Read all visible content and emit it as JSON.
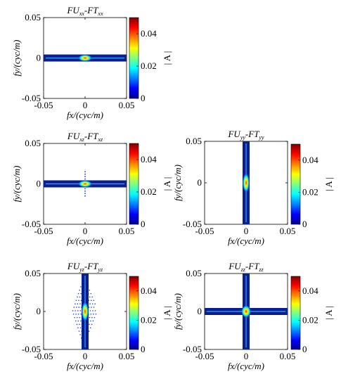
{
  "figure": {
    "colormap": [
      "#00008f",
      "#0000ff",
      "#0080ff",
      "#00ffff",
      "#80ff80",
      "#ffff00",
      "#ff8000",
      "#ff0000",
      "#800000"
    ],
    "band_color": "#0a1f8f",
    "marker_color": "#2446d6"
  },
  "chart_data": [
    {
      "type": "heatmap",
      "title_main": "FU",
      "title_sub1": "xx",
      "title_sep": "-FT",
      "title_sub2": "xx",
      "xlabel": "fx/(cyc/m)",
      "ylabel": "fy/(cyc/m)",
      "xlim": [
        -0.05,
        0.05
      ],
      "ylim": [
        -0.05,
        0.05
      ],
      "xticks": [
        "-0.05",
        "0",
        "0.05"
      ],
      "yticks": [
        "0.05",
        "0",
        "-0.05"
      ],
      "colorbar_label": "| A |",
      "colorbar_range": [
        0,
        0.05
      ],
      "colorbar_ticks": [
        "0.04",
        "0.02",
        "0"
      ],
      "pattern": "horizontal"
    },
    {
      "type": "heatmap",
      "title_main": "FU",
      "title_sub1": "xz",
      "title_sep": "-FT",
      "title_sub2": "xz",
      "xlabel": "fx/(cyc/m)",
      "ylabel": "fy/(cyc/m)",
      "xlim": [
        -0.05,
        0.05
      ],
      "ylim": [
        -0.05,
        0.05
      ],
      "xticks": [
        "-0.05",
        "0",
        "0.05"
      ],
      "yticks": [
        "0.05",
        "0",
        "-0.05"
      ],
      "colorbar_label": "| A |",
      "colorbar_range": [
        0,
        0.05
      ],
      "colorbar_ticks": [
        "0.04",
        "0.02",
        "0"
      ],
      "pattern": "horizontal-spot"
    },
    {
      "type": "heatmap",
      "title_main": "FU",
      "title_sub1": "yy",
      "title_sep": "-FT",
      "title_sub2": "yy",
      "xlabel": "fx/(cyc/m)",
      "ylabel": "fy/(cyc/m)",
      "xlim": [
        -0.05,
        0.05
      ],
      "ylim": [
        -0.05,
        0.05
      ],
      "xticks": [
        "-0.05",
        "0",
        "0.05"
      ],
      "yticks": [
        "0.05",
        "0",
        "-0.05"
      ],
      "colorbar_label": "| A |",
      "colorbar_range": [
        0,
        0.05
      ],
      "colorbar_ticks": [
        "0.04",
        "0.02",
        "0"
      ],
      "pattern": "vertical"
    },
    {
      "type": "heatmap",
      "title_main": "FU",
      "title_sub1": "yz",
      "title_sep": "-FT",
      "title_sub2": "yz",
      "xlabel": "fx/(cyc/m)",
      "ylabel": "fy/(cyc/m)",
      "xlim": [
        -0.05,
        0.05
      ],
      "ylim": [
        -0.05,
        0.05
      ],
      "xticks": [
        "-0.05",
        "0",
        "0.05"
      ],
      "yticks": [
        "0.05",
        "0",
        "-0.05"
      ],
      "colorbar_label": "| A |",
      "colorbar_range": [
        0,
        0.05
      ],
      "colorbar_ticks": [
        "0.04",
        "0.02",
        "0"
      ],
      "pattern": "vertical-diamond"
    },
    {
      "type": "heatmap",
      "title_main": "FU",
      "title_sub1": "zz",
      "title_sep": "-FT",
      "title_sub2": "zz",
      "xlabel": "fx/(cyc/m)",
      "ylabel": "fy/(cyc/m)",
      "xlim": [
        -0.05,
        0.05
      ],
      "ylim": [
        -0.05,
        0.05
      ],
      "xticks": [
        "-0.05",
        "0",
        "0.05"
      ],
      "yticks": [
        "0.05",
        "0",
        "-0.05"
      ],
      "colorbar_label": "| A |",
      "colorbar_range": [
        0,
        0.05
      ],
      "colorbar_ticks": [
        "0.04",
        "0.02",
        "0"
      ],
      "pattern": "cross"
    }
  ]
}
